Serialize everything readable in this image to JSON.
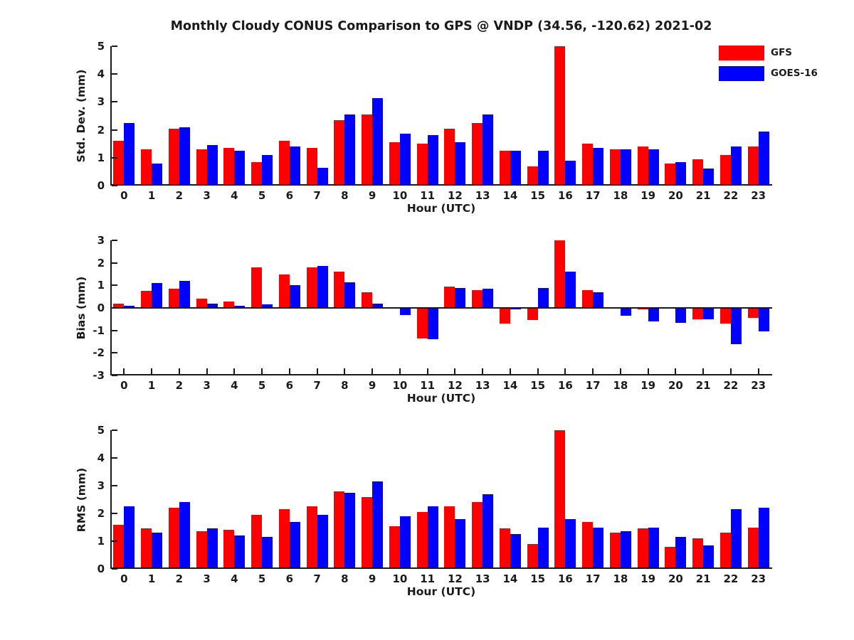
{
  "title": "Monthly Cloudy CONUS Comparison to GPS @ VNDP (34.56, -120.62) 2021-02",
  "legend": {
    "items": [
      {
        "label": "GFS",
        "color": "#ff0000"
      },
      {
        "label": "GOES-16",
        "color": "#0000ff"
      }
    ]
  },
  "colors": {
    "gfs": "#ff0000",
    "goes16": "#0000ff",
    "axis": "#1a1a1a"
  },
  "chart_data": [
    {
      "type": "bar",
      "ylabel": "Std. Dev. (mm)",
      "xlabel": "Hour (UTC)",
      "ylim": [
        0,
        5
      ],
      "yticks": [
        0,
        1,
        2,
        3,
        4,
        5
      ],
      "categories": [
        "0",
        "1",
        "2",
        "3",
        "4",
        "5",
        "6",
        "7",
        "8",
        "9",
        "10",
        "11",
        "12",
        "13",
        "14",
        "15",
        "16",
        "17",
        "18",
        "19",
        "20",
        "21",
        "22",
        "23"
      ],
      "legend_position": "upper-right-outside",
      "grid": false,
      "series": [
        {
          "name": "GFS",
          "color": "#ff0000",
          "values": [
            1.6,
            1.3,
            2.05,
            1.3,
            1.35,
            0.85,
            1.6,
            1.35,
            2.35,
            2.55,
            1.55,
            1.5,
            2.05,
            2.25,
            1.25,
            0.7,
            5.0,
            1.5,
            1.3,
            1.4,
            0.8,
            0.95,
            1.1,
            1.4
          ]
        },
        {
          "name": "GOES-16",
          "color": "#0000ff",
          "values": [
            2.25,
            0.8,
            2.1,
            1.45,
            1.25,
            1.1,
            1.4,
            0.65,
            2.55,
            3.15,
            1.85,
            1.8,
            1.55,
            2.55,
            1.25,
            1.25,
            0.9,
            1.35,
            1.3,
            1.3,
            0.85,
            0.6,
            1.4,
            1.95
          ]
        }
      ]
    },
    {
      "type": "bar",
      "ylabel": "Bias (mm)",
      "xlabel": "Hour (UTC)",
      "ylim": [
        -3,
        3
      ],
      "yticks": [
        3,
        2,
        1,
        0,
        -1,
        -2,
        -3
      ],
      "categories": [
        "0",
        "1",
        "2",
        "3",
        "4",
        "5",
        "6",
        "7",
        "8",
        "9",
        "10",
        "11",
        "12",
        "13",
        "14",
        "15",
        "16",
        "17",
        "18",
        "19",
        "20",
        "21",
        "22",
        "23"
      ],
      "grid": false,
      "series": [
        {
          "name": "GFS",
          "color": "#ff0000",
          "values": [
            0.2,
            0.75,
            0.85,
            0.4,
            0.3,
            1.8,
            1.5,
            1.8,
            1.6,
            0.7,
            0.0,
            -1.35,
            0.95,
            0.8,
            -0.7,
            -0.55,
            3.0,
            0.8,
            0.0,
            -0.05,
            0.0,
            -0.5,
            -0.7,
            -0.45
          ]
        },
        {
          "name": "GOES-16",
          "color": "#0000ff",
          "values": [
            0.1,
            1.1,
            1.2,
            0.2,
            0.1,
            0.15,
            1.0,
            1.85,
            1.15,
            0.2,
            -0.3,
            -1.4,
            0.9,
            0.85,
            -0.05,
            0.9,
            1.6,
            0.7,
            -0.35,
            -0.6,
            -0.65,
            -0.5,
            -1.6,
            -1.05
          ]
        }
      ]
    },
    {
      "type": "bar",
      "ylabel": "RMS (mm)",
      "xlabel": "Hour (UTC)",
      "ylim": [
        0,
        5
      ],
      "yticks": [
        0,
        1,
        2,
        3,
        4,
        5
      ],
      "categories": [
        "0",
        "1",
        "2",
        "3",
        "4",
        "5",
        "6",
        "7",
        "8",
        "9",
        "10",
        "11",
        "12",
        "13",
        "14",
        "15",
        "16",
        "17",
        "18",
        "19",
        "20",
        "21",
        "22",
        "23"
      ],
      "grid": false,
      "series": [
        {
          "name": "GFS",
          "color": "#ff0000",
          "values": [
            1.6,
            1.45,
            2.2,
            1.35,
            1.4,
            1.95,
            2.15,
            2.25,
            2.8,
            2.6,
            1.55,
            2.05,
            2.25,
            2.4,
            1.45,
            0.9,
            5.0,
            1.7,
            1.3,
            1.45,
            0.8,
            1.1,
            1.3,
            1.5
          ]
        },
        {
          "name": "GOES-16",
          "color": "#0000ff",
          "values": [
            2.25,
            1.3,
            2.4,
            1.45,
            1.2,
            1.15,
            1.7,
            1.95,
            2.75,
            3.15,
            1.9,
            2.25,
            1.8,
            2.7,
            1.25,
            1.5,
            1.8,
            1.5,
            1.35,
            1.5,
            1.15,
            0.85,
            2.15,
            2.2
          ]
        }
      ]
    }
  ]
}
